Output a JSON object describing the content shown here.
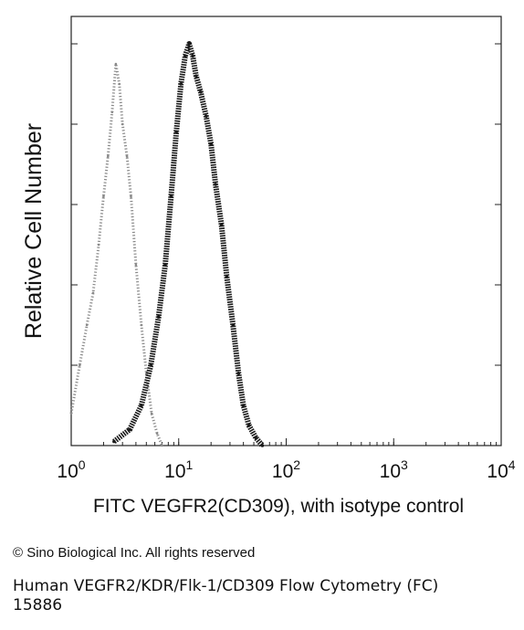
{
  "chart_data": {
    "type": "area",
    "title": "",
    "xlabel": "FITC VEGFR2(CD309), with isotype control",
    "ylabel": "Relative Cell Number",
    "x_scale": "log",
    "xlim": [
      1,
      10000
    ],
    "ylim": [
      0,
      1
    ],
    "x_ticks": [
      {
        "base": "10",
        "exp": "0"
      },
      {
        "base": "10",
        "exp": "1"
      },
      {
        "base": "10",
        "exp": "2"
      },
      {
        "base": "10",
        "exp": "3"
      },
      {
        "base": "10",
        "exp": "4"
      }
    ],
    "grid": false,
    "series": [
      {
        "role": "isotype control",
        "style": "light gray dotted",
        "color": "#8a8a8a",
        "x": [
          1.0,
          1.2,
          1.4,
          1.6,
          1.8,
          2.0,
          2.2,
          2.4,
          2.6,
          2.8,
          3.0,
          3.3,
          3.6,
          4.0,
          4.5,
          5.0,
          5.6,
          6.3,
          7.0
        ],
        "y": [
          0.08,
          0.2,
          0.3,
          0.38,
          0.5,
          0.62,
          0.72,
          0.83,
          0.95,
          0.9,
          0.8,
          0.72,
          0.62,
          0.45,
          0.3,
          0.18,
          0.08,
          0.03,
          0.0
        ]
      },
      {
        "role": "VEGFR2 antibody",
        "style": "dark stipple",
        "color": "#1a1a1a",
        "x": [
          2.5,
          3.5,
          4.5,
          5.5,
          6.5,
          7.5,
          8.5,
          9.5,
          10.5,
          11.5,
          12.5,
          13.5,
          14.5,
          16.0,
          18.0,
          20.0,
          22.0,
          25.0,
          28.0,
          32.0,
          36.0,
          40.0,
          45.0,
          52.0,
          60.0
        ],
        "y": [
          0.01,
          0.04,
          0.1,
          0.2,
          0.32,
          0.45,
          0.62,
          0.78,
          0.9,
          0.97,
          1.0,
          0.97,
          0.92,
          0.88,
          0.82,
          0.75,
          0.65,
          0.55,
          0.42,
          0.3,
          0.18,
          0.1,
          0.05,
          0.02,
          0.0
        ]
      }
    ]
  },
  "caption": "© Sino Biological Inc. All rights reserved",
  "footer": {
    "line1": "Human VEGFR2/KDR/Flk-1/CD309 Flow Cytometry (FC)",
    "line2": "15886"
  }
}
